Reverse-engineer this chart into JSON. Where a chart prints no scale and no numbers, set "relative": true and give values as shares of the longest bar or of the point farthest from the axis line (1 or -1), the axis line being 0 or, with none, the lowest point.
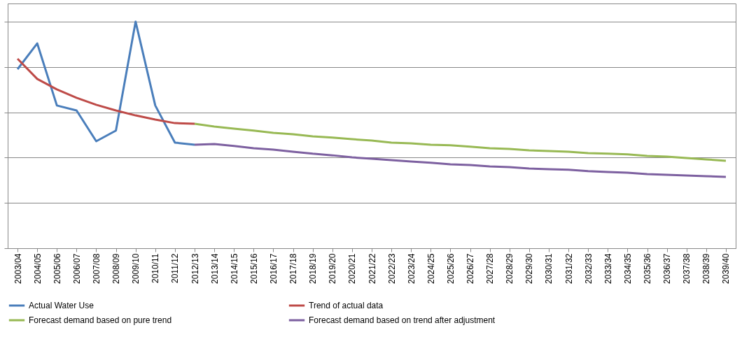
{
  "chart_data": {
    "type": "line",
    "relative": true,
    "grid": "y",
    "legend": "bottom",
    "line_style": "solid",
    "marker": "none",
    "categories": [
      "2003/04",
      "2004/05",
      "2005/06",
      "2006/07",
      "2007/08",
      "2008/09",
      "2009/10",
      "2010/11",
      "2011/12",
      "2012/13",
      "2013/14",
      "2014/15",
      "2015/16",
      "2016/17",
      "2017/18",
      "2018/19",
      "2019/20",
      "2020/21",
      "2021/22",
      "2022/23",
      "2023/24",
      "2024/25",
      "2025/26",
      "2026/27",
      "2027/28",
      "2028/29",
      "2029/30",
      "2030/31",
      "2031/32",
      "2032/33",
      "2033/34",
      "2034/35",
      "2035/36",
      "2036/37",
      "2037/38",
      "2038/39",
      "2039/40"
    ],
    "series": [
      {
        "name": "Actual Water Use",
        "color": "#4a7ebb",
        "values": [
          0.79,
          0.904,
          0.63,
          0.608,
          0.472,
          0.519,
          1.0,
          0.63,
          0.466,
          0.457,
          null,
          null,
          null,
          null,
          null,
          null,
          null,
          null,
          null,
          null,
          null,
          null,
          null,
          null,
          null,
          null,
          null,
          null,
          null,
          null,
          null,
          null,
          null,
          null,
          null,
          null,
          null
        ]
      },
      {
        "name": "Trend of actual data",
        "color": "#be4b48",
        "values": [
          0.836,
          0.747,
          0.701,
          0.664,
          0.633,
          0.608,
          0.586,
          0.568,
          0.552,
          0.549,
          null,
          null,
          null,
          null,
          null,
          null,
          null,
          null,
          null,
          null,
          null,
          null,
          null,
          null,
          null,
          null,
          null,
          null,
          null,
          null,
          null,
          null,
          null,
          null,
          null,
          null,
          null
        ]
      },
      {
        "name": "Forecast demand based on pure trend",
        "color": "#98b954",
        "values": [
          null,
          null,
          null,
          null,
          null,
          null,
          null,
          null,
          null,
          0.549,
          0.537,
          0.528,
          0.519,
          0.509,
          0.503,
          0.494,
          0.488,
          0.481,
          0.475,
          0.466,
          0.463,
          0.457,
          0.454,
          0.448,
          0.441,
          0.438,
          0.432,
          0.429,
          0.426,
          0.42,
          0.417,
          0.414,
          0.407,
          0.404,
          0.398,
          0.392,
          0.386
        ]
      },
      {
        "name": "Forecast demand based on trend after adjustment",
        "color": "#7d60a0",
        "values": [
          null,
          null,
          null,
          null,
          null,
          null,
          null,
          null,
          null,
          0.457,
          0.46,
          0.451,
          0.441,
          0.435,
          0.426,
          0.417,
          0.41,
          0.401,
          0.395,
          0.389,
          0.383,
          0.377,
          0.37,
          0.367,
          0.361,
          0.358,
          0.352,
          0.349,
          0.346,
          0.34,
          0.336,
          0.333,
          0.327,
          0.324,
          0.321,
          0.318,
          0.315
        ]
      }
    ]
  }
}
